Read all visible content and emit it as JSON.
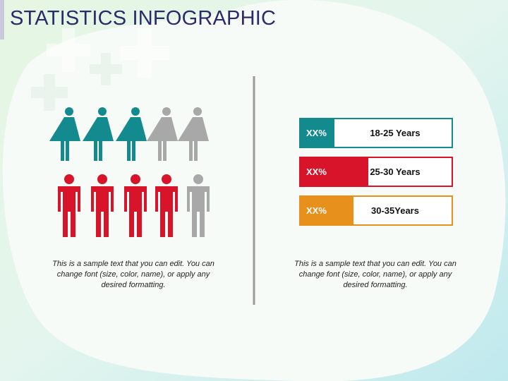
{
  "title": "STATISTICS INFOGRAPHIC",
  "left_panel": {
    "caption": "This is a sample text that you can edit. You can change font (size, color, name), or apply any desired formatting."
  },
  "right_panel": {
    "bars": [
      {
        "value_label": "XX%",
        "label": "18-25 Years"
      },
      {
        "value_label": "XX%",
        "label": "25-30 Years"
      },
      {
        "value_label": "XX%",
        "label": "30-35Years"
      }
    ],
    "caption": "This is a sample text that you can edit. You can change font (size, color, name), or apply any desired formatting."
  }
}
